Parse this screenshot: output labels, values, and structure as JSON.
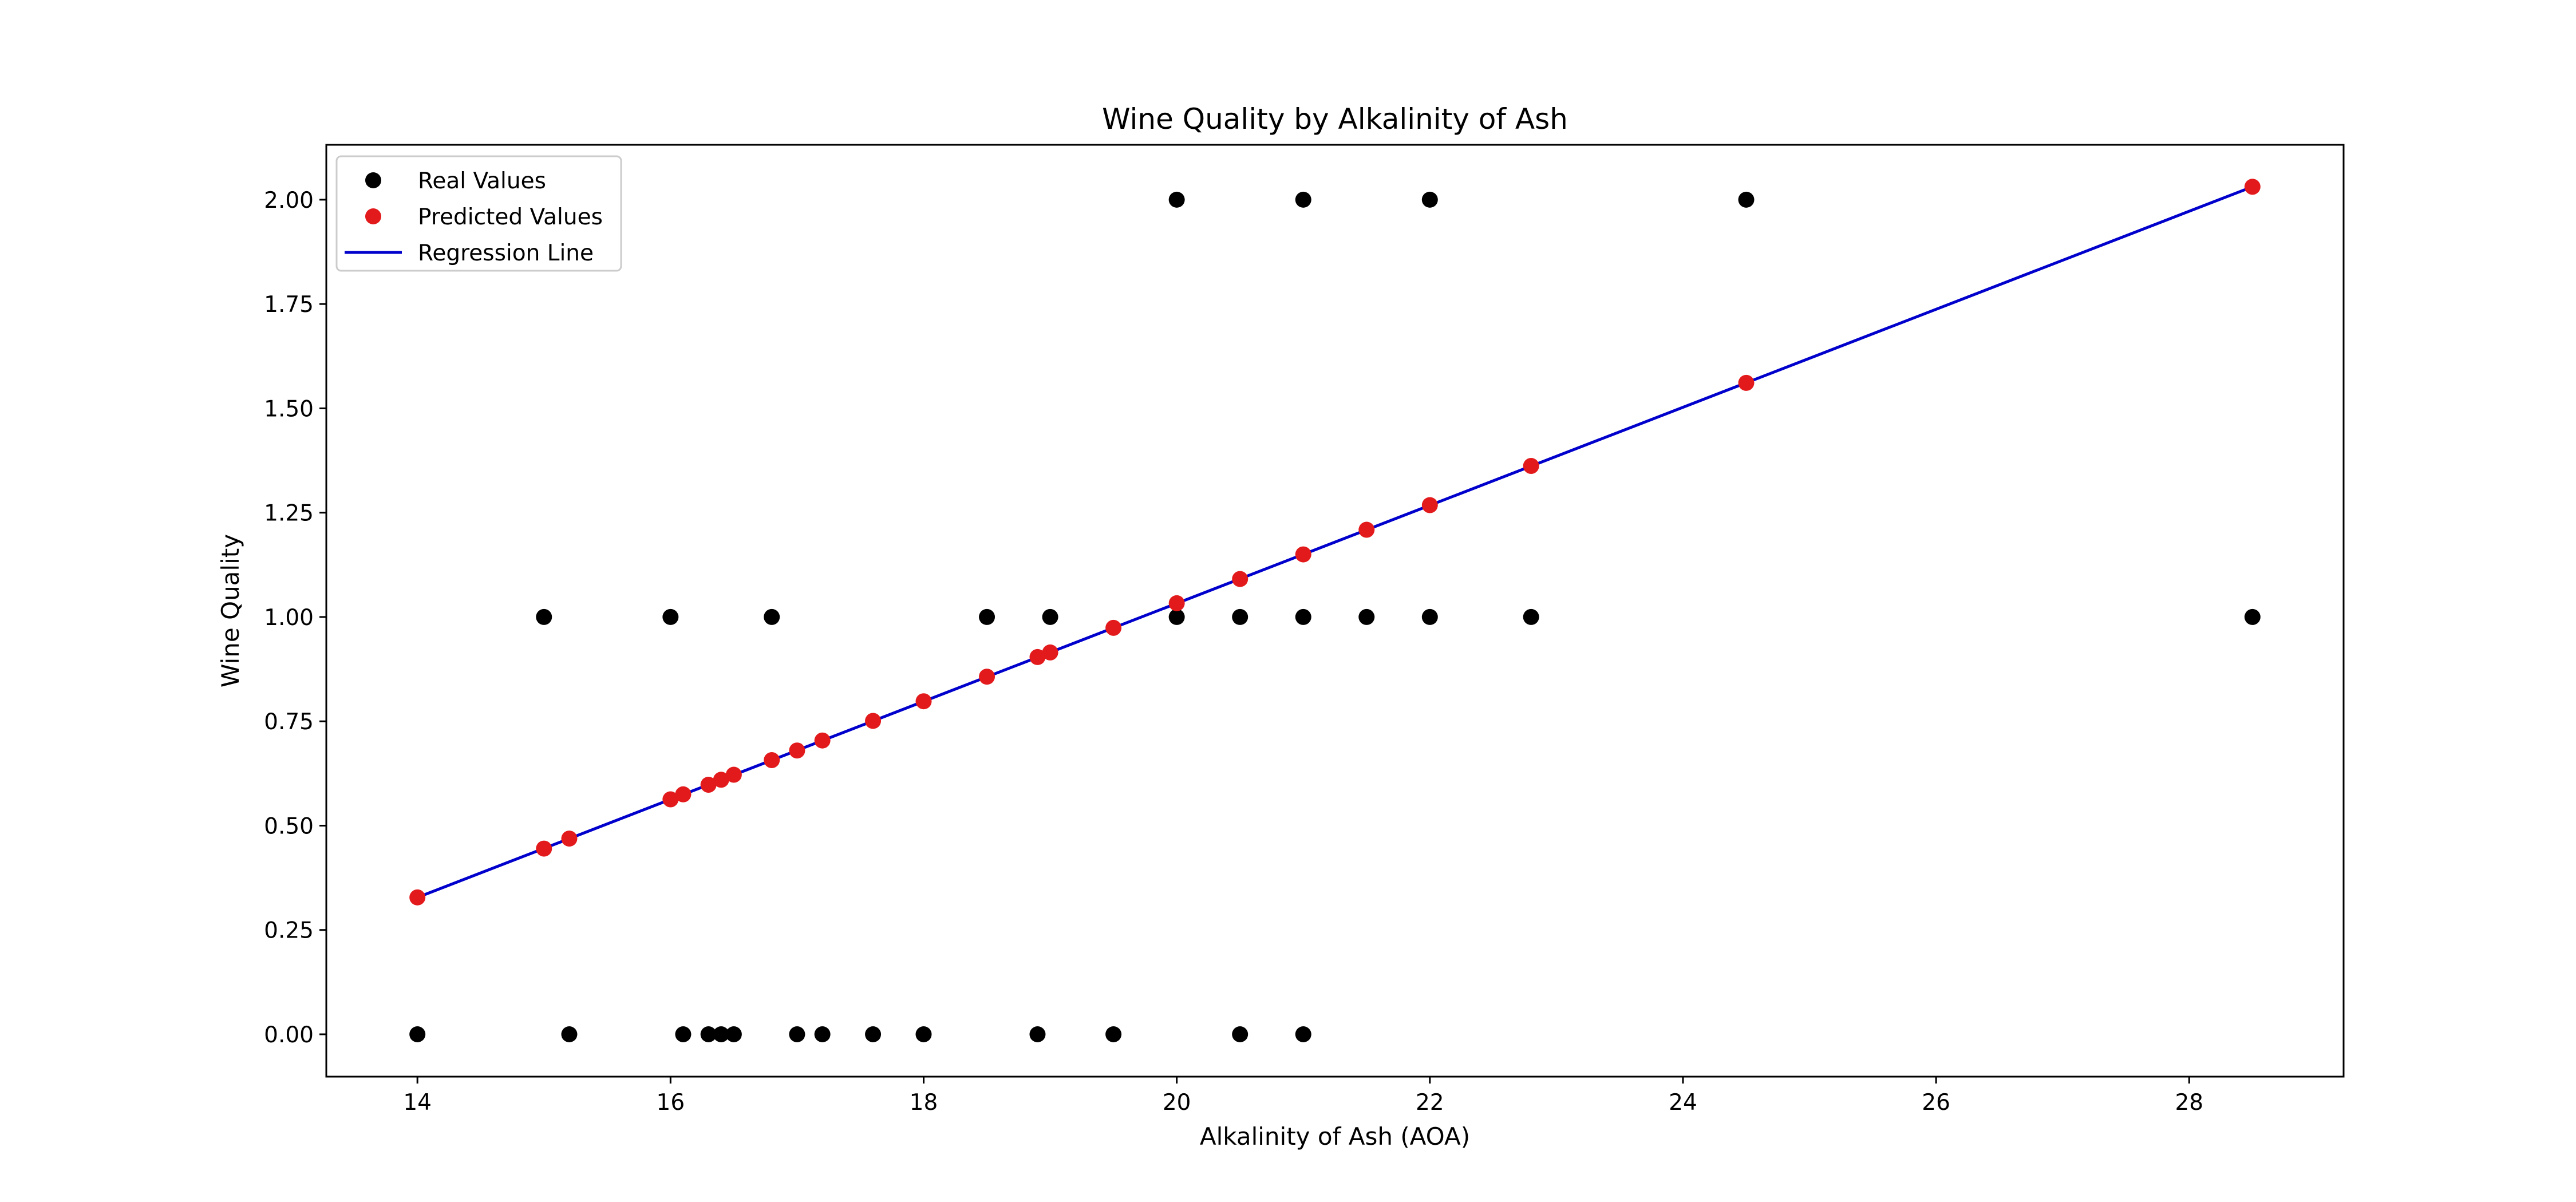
{
  "chart_data": {
    "type": "scatter",
    "title": "Wine Quality by Alkalinity of Ash",
    "xlabel": "Alkalinity of Ash (AOA)",
    "ylabel": "Wine Quality",
    "xlim": [
      13.28,
      29.22
    ],
    "ylim": [
      -0.1015,
      2.1315
    ],
    "xticks": [
      14,
      16,
      18,
      20,
      22,
      24,
      26,
      28
    ],
    "yticks": [
      0.0,
      0.25,
      0.5,
      0.75,
      1.0,
      1.25,
      1.5,
      1.75,
      2.0
    ],
    "grid": false,
    "legend_position": "top-left",
    "series": [
      {
        "name": "Real Values",
        "kind": "scatter",
        "color": "#000000",
        "points": [
          [
            14.0,
            0
          ],
          [
            15.0,
            1
          ],
          [
            15.2,
            0
          ],
          [
            16.0,
            1
          ],
          [
            16.1,
            0
          ],
          [
            16.3,
            0
          ],
          [
            16.4,
            0
          ],
          [
            16.5,
            0
          ],
          [
            16.8,
            1
          ],
          [
            17.0,
            0
          ],
          [
            17.2,
            0
          ],
          [
            17.6,
            0
          ],
          [
            18.0,
            0
          ],
          [
            18.5,
            1
          ],
          [
            18.9,
            0
          ],
          [
            19.0,
            1
          ],
          [
            19.5,
            0
          ],
          [
            20.0,
            2
          ],
          [
            20.0,
            1
          ],
          [
            20.5,
            1
          ],
          [
            20.5,
            0
          ],
          [
            21.0,
            2
          ],
          [
            21.0,
            1
          ],
          [
            21.0,
            0
          ],
          [
            21.5,
            1
          ],
          [
            22.0,
            2
          ],
          [
            22.0,
            1
          ],
          [
            22.8,
            1
          ],
          [
            24.5,
            2
          ],
          [
            28.5,
            1
          ]
        ]
      },
      {
        "name": "Predicted Values",
        "kind": "scatter",
        "color": "#e31a1c",
        "points": [
          [
            14.0,
            0.328
          ],
          [
            15.0,
            0.445
          ],
          [
            15.2,
            0.469
          ],
          [
            16.0,
            0.563
          ],
          [
            16.1,
            0.575
          ],
          [
            16.3,
            0.598
          ],
          [
            16.4,
            0.61
          ],
          [
            16.5,
            0.622
          ],
          [
            16.8,
            0.657
          ],
          [
            17.0,
            0.68
          ],
          [
            17.2,
            0.704
          ],
          [
            17.6,
            0.751
          ],
          [
            18.0,
            0.798
          ],
          [
            18.5,
            0.857
          ],
          [
            18.9,
            0.904
          ],
          [
            19.0,
            0.915
          ],
          [
            19.5,
            0.974
          ],
          [
            20.0,
            1.033
          ],
          [
            20.5,
            1.091
          ],
          [
            21.0,
            1.15
          ],
          [
            21.5,
            1.209
          ],
          [
            22.0,
            1.268
          ],
          [
            22.8,
            1.362
          ],
          [
            24.5,
            1.561
          ],
          [
            28.5,
            2.031
          ]
        ]
      },
      {
        "name": "Regression Line",
        "kind": "line",
        "color": "#0000cc",
        "points": [
          [
            14.0,
            0.328
          ],
          [
            28.5,
            2.031
          ]
        ]
      }
    ]
  }
}
